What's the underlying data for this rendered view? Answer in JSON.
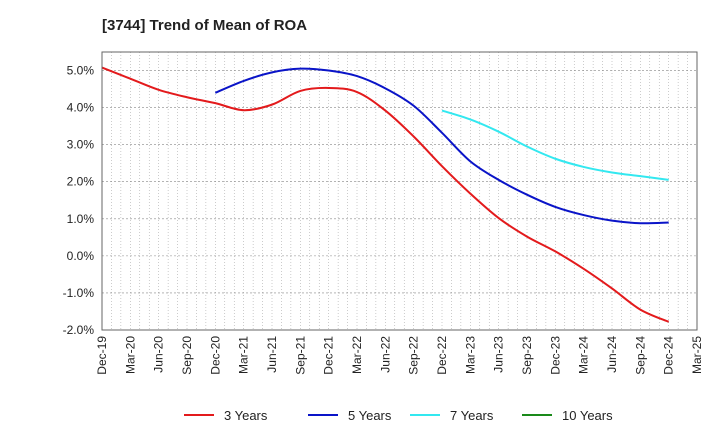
{
  "chart_data": {
    "type": "line",
    "title": "[3744]  Trend of Mean of ROA",
    "xlabel": "",
    "ylabel": "",
    "ylim": [
      -2.0,
      5.5
    ],
    "y_ticks": [
      5.0,
      4.0,
      3.0,
      2.0,
      1.0,
      0.0,
      -1.0,
      -2.0
    ],
    "y_tick_labels": [
      "5.0%",
      "4.0%",
      "3.0%",
      "2.0%",
      "1.0%",
      "0.0%",
      "-1.0%",
      "-2.0%"
    ],
    "categories": [
      "Dec-19",
      "Mar-20",
      "Jun-20",
      "Sep-20",
      "Dec-20",
      "Mar-21",
      "Jun-21",
      "Sep-21",
      "Dec-21",
      "Mar-22",
      "Jun-22",
      "Sep-22",
      "Dec-22",
      "Mar-23",
      "Jun-23",
      "Sep-23",
      "Dec-23",
      "Mar-24",
      "Jun-24",
      "Sep-24",
      "Dec-24",
      "Mar-25"
    ],
    "grid": true,
    "legend_position": "bottom",
    "series": [
      {
        "name": "3 Years",
        "color": "#e31a1c",
        "values": [
          5.08,
          4.78,
          4.48,
          4.28,
          4.12,
          3.93,
          4.08,
          4.45,
          4.53,
          4.42,
          3.92,
          3.22,
          2.42,
          1.68,
          1.02,
          0.52,
          0.12,
          -0.35,
          -0.88,
          -1.45,
          -1.78,
          null
        ]
      },
      {
        "name": "5 Years",
        "color": "#0a14c8",
        "values": [
          null,
          null,
          null,
          null,
          4.4,
          4.72,
          4.95,
          5.05,
          5.0,
          4.85,
          4.52,
          4.05,
          3.32,
          2.55,
          2.05,
          1.65,
          1.32,
          1.1,
          0.95,
          0.88,
          0.9,
          null
        ]
      },
      {
        "name": "7 Years",
        "color": "#33e8f0",
        "values": [
          null,
          null,
          null,
          null,
          null,
          null,
          null,
          null,
          null,
          null,
          null,
          null,
          3.92,
          3.68,
          3.35,
          2.95,
          2.62,
          2.4,
          2.25,
          2.15,
          2.05,
          null
        ]
      },
      {
        "name": "10 Years",
        "color": "#1a8a1a",
        "values": [
          null,
          null,
          null,
          null,
          null,
          null,
          null,
          null,
          null,
          null,
          null,
          null,
          null,
          null,
          null,
          null,
          null,
          null,
          null,
          null,
          null,
          null
        ]
      }
    ]
  }
}
